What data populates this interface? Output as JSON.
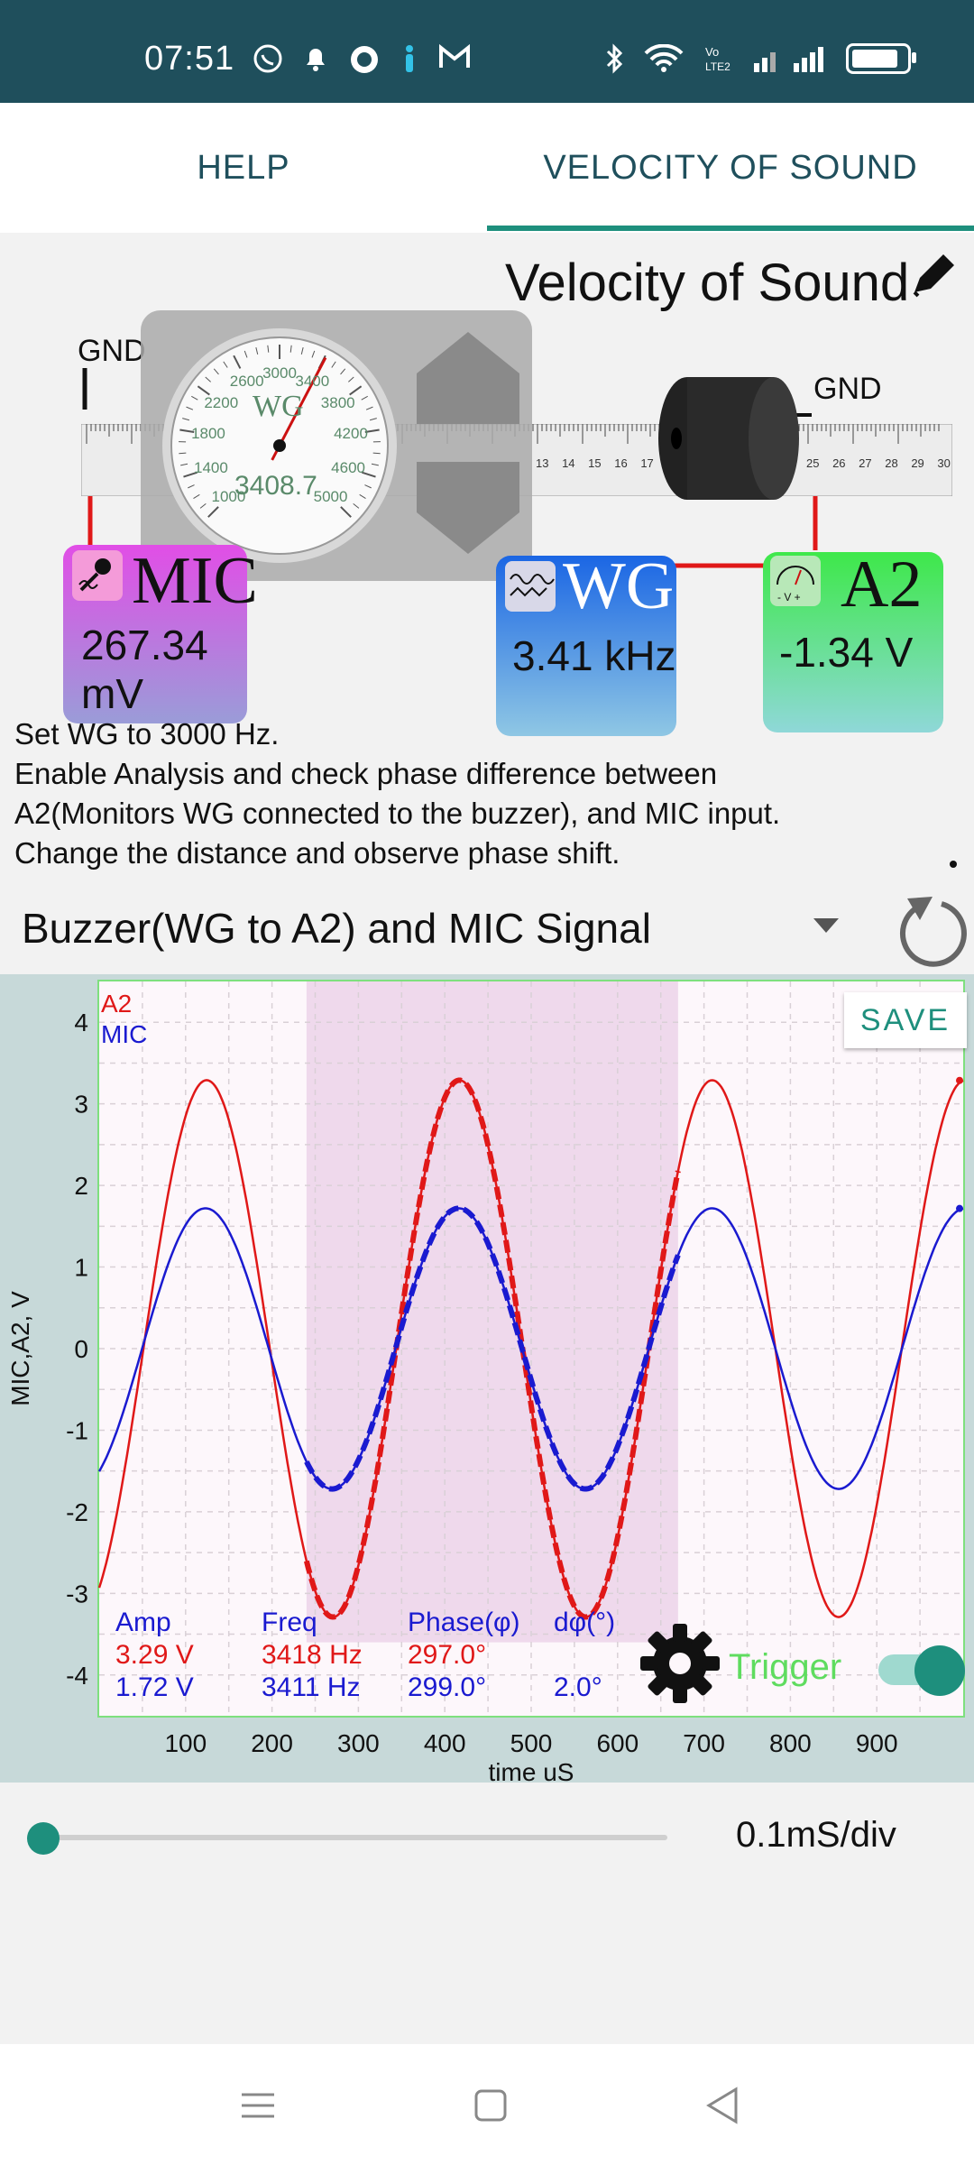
{
  "statusbar": {
    "time": "07:51",
    "icons_left": [
      "whatsapp-icon",
      "bell-icon",
      "record-icon",
      "person-icon",
      "gmail-icon"
    ],
    "icons_right": [
      "bluetooth-icon",
      "wifi-icon",
      "volte-icon",
      "signal-icon",
      "battery-icon"
    ],
    "volte_text": "Vo\nLTE2"
  },
  "tabs": [
    {
      "label": "HELP"
    },
    {
      "label": "VELOCITY OF SOUND"
    }
  ],
  "experiment": {
    "title": "Velocity of Sound",
    "gnd_left": "GND",
    "gnd_right": "GND",
    "gauge": {
      "label": "WG",
      "reading": "3408.7",
      "ticks": [
        "1000",
        "1400",
        "1800",
        "2200",
        "2600",
        "3000",
        "3400",
        "3800",
        "4200",
        "4600",
        "5000"
      ]
    },
    "ruler_numbers": [
      "13",
      "14",
      "15",
      "16",
      "17",
      "25",
      "26",
      "27",
      "28",
      "29",
      "30"
    ],
    "mic": {
      "name": "MIC",
      "value": "267.34 mV"
    },
    "wg": {
      "name": "WG",
      "value": "3.41 kHz"
    },
    "a2": {
      "name": "A2",
      "value": "-1.34 V",
      "icon_text": "- V +"
    }
  },
  "instructions": [
    "Set WG to 3000 Hz.",
    "Enable Analysis and check phase difference between",
    "A2(Monitors WG connected to the buzzer), and MIC input.",
    "Change the distance and observe phase shift."
  ],
  "select": {
    "value": "Buzzer(WG to A2) and MIC Signal"
  },
  "save_label": "SAVE",
  "stats": {
    "headers": {
      "amp": "Amp",
      "freq": "Freq",
      "phase": "Phase(φ)",
      "dphi": "dφ(°)"
    },
    "a2": {
      "amp": "3.29 V",
      "freq": "3418 Hz",
      "phase": "297.0°"
    },
    "mic": {
      "amp": "1.72 V",
      "freq": "3411 Hz",
      "phase": "299.0°",
      "dphi": "2.0°"
    }
  },
  "trigger_label": "Trigger",
  "trigger_on": true,
  "timebase": {
    "label": "0.1mS/div",
    "slider_fraction": 0.0
  },
  "colors": {
    "a2": "#e01818",
    "mic": "#1a1ad0",
    "accent": "#1e8f7d",
    "statusbar": "#1f4f5c"
  },
  "chart_data": {
    "type": "line",
    "xlabel": "time uS",
    "ylabel": "MIC,A2, V",
    "xlim": [
      0,
      1000
    ],
    "ylim": [
      -4.5,
      4.5
    ],
    "x_ticks": [
      100,
      200,
      300,
      400,
      500,
      600,
      700,
      800,
      900
    ],
    "y_ticks": [
      4,
      3,
      2,
      1,
      0,
      -1,
      -2,
      -3,
      -4
    ],
    "grid": true,
    "legend": "top-left",
    "analysis_window": [
      240,
      670
    ],
    "series": [
      {
        "name": "A2",
        "color": "#e01818",
        "amplitude": 3.29,
        "frequency_hz": 3418,
        "phase_deg": 297.0,
        "fit_dashed_in_window": true
      },
      {
        "name": "MIC",
        "color": "#1a1ad0",
        "amplitude": 1.72,
        "frequency_hz": 3411,
        "phase_deg": 299.0,
        "fit_dashed_in_window": true
      }
    ]
  }
}
